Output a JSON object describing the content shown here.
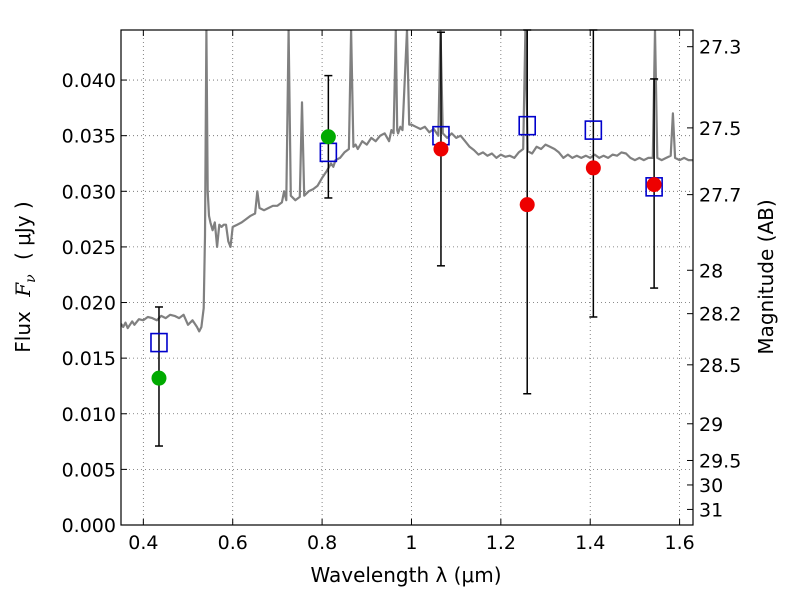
{
  "chart_data": {
    "type": "scatter",
    "xlabel": "Wavelength  λ (μm)",
    "ylabel_text": "Flux",
    "ylabel_math": "F",
    "ylabel_sub": "ν",
    "ylabel_unit": "( μJy )",
    "y2label": "Magnitude (AB)",
    "xlim": [
      0.35,
      1.63
    ],
    "ylim": [
      0.0,
      0.0445
    ],
    "grid": true,
    "x_ticks": [
      {
        "value": 0.4,
        "label": "0.4"
      },
      {
        "value": 0.6,
        "label": "0.6"
      },
      {
        "value": 0.8,
        "label": "0.8"
      },
      {
        "value": 1.0,
        "label": "1"
      },
      {
        "value": 1.2,
        "label": "1.2"
      },
      {
        "value": 1.4,
        "label": "1.4"
      },
      {
        "value": 1.6,
        "label": "1.6"
      }
    ],
    "y_ticks": [
      {
        "value": 0.0,
        "label": "0.000"
      },
      {
        "value": 0.005,
        "label": "0.005"
      },
      {
        "value": 0.01,
        "label": "0.010"
      },
      {
        "value": 0.015,
        "label": "0.015"
      },
      {
        "value": 0.02,
        "label": "0.020"
      },
      {
        "value": 0.025,
        "label": "0.025"
      },
      {
        "value": 0.03,
        "label": "0.030"
      },
      {
        "value": 0.035,
        "label": "0.035"
      },
      {
        "value": 0.04,
        "label": "0.040"
      }
    ],
    "mag_ticks": [
      {
        "flux": 0.043,
        "label": "27.3"
      },
      {
        "flux": 0.0357,
        "label": "27.5"
      },
      {
        "flux": 0.0297,
        "label": "27.7"
      },
      {
        "flux": 0.0229,
        "label": "28"
      },
      {
        "flux": 0.019,
        "label": "28.2"
      },
      {
        "flux": 0.0144,
        "label": "28.5"
      },
      {
        "flux": 0.0091,
        "label": "29"
      },
      {
        "flux": 0.0058,
        "label": "29.5"
      },
      {
        "flux": 0.0036,
        "label": "30"
      },
      {
        "flux": 0.0014,
        "label": "31"
      }
    ],
    "model_spectrum": {
      "color": "#808080",
      "points": [
        [
          0.35,
          0.0181
        ],
        [
          0.355,
          0.0178
        ],
        [
          0.36,
          0.0182
        ],
        [
          0.365,
          0.0177
        ],
        [
          0.37,
          0.018
        ],
        [
          0.375,
          0.0183
        ],
        [
          0.38,
          0.018
        ],
        [
          0.39,
          0.0185
        ],
        [
          0.4,
          0.0184
        ],
        [
          0.41,
          0.0187
        ],
        [
          0.42,
          0.0186
        ],
        [
          0.43,
          0.0184
        ],
        [
          0.44,
          0.0188
        ],
        [
          0.45,
          0.0186
        ],
        [
          0.46,
          0.0189
        ],
        [
          0.47,
          0.0188
        ],
        [
          0.48,
          0.0186
        ],
        [
          0.49,
          0.0189
        ],
        [
          0.5,
          0.018
        ],
        [
          0.51,
          0.0184
        ],
        [
          0.52,
          0.0178
        ],
        [
          0.525,
          0.0174
        ],
        [
          0.53,
          0.0178
        ],
        [
          0.535,
          0.0195
        ],
        [
          0.538,
          0.026
        ],
        [
          0.541,
          0.0445
        ],
        [
          0.544,
          0.03
        ],
        [
          0.547,
          0.0278
        ],
        [
          0.55,
          0.0272
        ],
        [
          0.555,
          0.0265
        ],
        [
          0.56,
          0.0272
        ],
        [
          0.565,
          0.025
        ],
        [
          0.568,
          0.0262
        ],
        [
          0.57,
          0.027
        ],
        [
          0.575,
          0.0268
        ],
        [
          0.58,
          0.027
        ],
        [
          0.585,
          0.027
        ],
        [
          0.59,
          0.0255
        ],
        [
          0.595,
          0.025
        ],
        [
          0.6,
          0.0268
        ],
        [
          0.61,
          0.027
        ],
        [
          0.62,
          0.0272
        ],
        [
          0.63,
          0.0275
        ],
        [
          0.64,
          0.0278
        ],
        [
          0.65,
          0.028
        ],
        [
          0.655,
          0.03
        ],
        [
          0.66,
          0.0285
        ],
        [
          0.67,
          0.0283
        ],
        [
          0.68,
          0.0285
        ],
        [
          0.69,
          0.0287
        ],
        [
          0.7,
          0.0287
        ],
        [
          0.71,
          0.029
        ],
        [
          0.715,
          0.03
        ],
        [
          0.72,
          0.0292
        ],
        [
          0.725,
          0.0445
        ],
        [
          0.73,
          0.0296
        ],
        [
          0.74,
          0.0292
        ],
        [
          0.75,
          0.0295
        ],
        [
          0.755,
          0.038
        ],
        [
          0.76,
          0.0296
        ],
        [
          0.77,
          0.03
        ],
        [
          0.78,
          0.0302
        ],
        [
          0.79,
          0.0305
        ],
        [
          0.8,
          0.0312
        ],
        [
          0.81,
          0.0318
        ],
        [
          0.82,
          0.0325
        ],
        [
          0.825,
          0.0322
        ],
        [
          0.83,
          0.0328
        ],
        [
          0.84,
          0.033
        ],
        [
          0.85,
          0.0335
        ],
        [
          0.86,
          0.0338
        ],
        [
          0.865,
          0.0445
        ],
        [
          0.87,
          0.034
        ],
        [
          0.875,
          0.0342
        ],
        [
          0.88,
          0.0338
        ],
        [
          0.89,
          0.0345
        ],
        [
          0.9,
          0.0342
        ],
        [
          0.91,
          0.0348
        ],
        [
          0.92,
          0.0345
        ],
        [
          0.93,
          0.035
        ],
        [
          0.94,
          0.0352
        ],
        [
          0.95,
          0.0345
        ],
        [
          0.955,
          0.0355
        ],
        [
          0.96,
          0.0352
        ],
        [
          0.965,
          0.0445
        ],
        [
          0.968,
          0.0355
        ],
        [
          0.97,
          0.0352
        ],
        [
          0.975,
          0.0358
        ],
        [
          0.98,
          0.0355
        ],
        [
          0.99,
          0.0445
        ],
        [
          0.995,
          0.036
        ],
        [
          1.0,
          0.036
        ],
        [
          1.01,
          0.0358
        ],
        [
          1.02,
          0.0356
        ],
        [
          1.03,
          0.0358
        ],
        [
          1.04,
          0.0353
        ],
        [
          1.05,
          0.0356
        ],
        [
          1.06,
          0.035
        ],
        [
          1.065,
          0.0445
        ],
        [
          1.07,
          0.0352
        ],
        [
          1.08,
          0.0348
        ],
        [
          1.09,
          0.0352
        ],
        [
          1.1,
          0.0348
        ],
        [
          1.11,
          0.035
        ],
        [
          1.12,
          0.0345
        ],
        [
          1.13,
          0.034
        ],
        [
          1.14,
          0.0337
        ],
        [
          1.15,
          0.0333
        ],
        [
          1.16,
          0.0335
        ],
        [
          1.17,
          0.0332
        ],
        [
          1.18,
          0.0334
        ],
        [
          1.19,
          0.033
        ],
        [
          1.2,
          0.0333
        ],
        [
          1.21,
          0.0331
        ],
        [
          1.22,
          0.0332
        ],
        [
          1.23,
          0.033
        ],
        [
          1.24,
          0.0335
        ],
        [
          1.25,
          0.0338
        ],
        [
          1.255,
          0.0445
        ],
        [
          1.26,
          0.0336
        ],
        [
          1.27,
          0.0334
        ],
        [
          1.28,
          0.034
        ],
        [
          1.29,
          0.0338
        ],
        [
          1.3,
          0.0342
        ],
        [
          1.31,
          0.034
        ],
        [
          1.32,
          0.0338
        ],
        [
          1.33,
          0.0335
        ],
        [
          1.34,
          0.033
        ],
        [
          1.35,
          0.0333
        ],
        [
          1.36,
          0.033
        ],
        [
          1.37,
          0.0332
        ],
        [
          1.38,
          0.033
        ],
        [
          1.39,
          0.0332
        ],
        [
          1.4,
          0.033
        ],
        [
          1.41,
          0.0333
        ],
        [
          1.42,
          0.033
        ],
        [
          1.43,
          0.0332
        ],
        [
          1.44,
          0.033
        ],
        [
          1.45,
          0.0333
        ],
        [
          1.46,
          0.0332
        ],
        [
          1.47,
          0.0335
        ],
        [
          1.48,
          0.0334
        ],
        [
          1.49,
          0.033
        ],
        [
          1.5,
          0.0328
        ],
        [
          1.51,
          0.033
        ],
        [
          1.52,
          0.0328
        ],
        [
          1.53,
          0.033
        ],
        [
          1.54,
          0.033
        ],
        [
          1.545,
          0.0445
        ],
        [
          1.55,
          0.033
        ],
        [
          1.56,
          0.0328
        ],
        [
          1.57,
          0.033
        ],
        [
          1.58,
          0.0332
        ],
        [
          1.585,
          0.037
        ],
        [
          1.59,
          0.033
        ],
        [
          1.6,
          0.0328
        ],
        [
          1.61,
          0.033
        ],
        [
          1.62,
          0.0328
        ],
        [
          1.63,
          0.0328
        ]
      ]
    },
    "observed_green": {
      "color": "#00aa00",
      "points": [
        {
          "x": 0.435,
          "y": 0.0132,
          "err_low": 0.0071,
          "err_high": 0.0196
        },
        {
          "x": 0.814,
          "y": 0.0349,
          "err_low": 0.0294,
          "err_high": 0.0404
        }
      ]
    },
    "observed_red": {
      "color": "#ee0000",
      "points": [
        {
          "x": 1.066,
          "y": 0.0338,
          "err_low": 0.0233,
          "err_high": 0.0443
        },
        {
          "x": 1.259,
          "y": 0.0288,
          "err_low": 0.0118,
          "err_high": 0.0445
        },
        {
          "x": 1.407,
          "y": 0.0321,
          "err_low": 0.0187,
          "err_high": 0.0445
        },
        {
          "x": 1.543,
          "y": 0.0306,
          "err_low": 0.0213,
          "err_high": 0.0401
        }
      ]
    },
    "model_bands": {
      "color": "#0000cc",
      "points": [
        {
          "x": 0.435,
          "y": 0.0164
        },
        {
          "x": 0.814,
          "y": 0.0335
        },
        {
          "x": 1.066,
          "y": 0.035
        },
        {
          "x": 1.259,
          "y": 0.0359
        },
        {
          "x": 1.407,
          "y": 0.0355
        },
        {
          "x": 1.543,
          "y": 0.0304
        }
      ]
    }
  }
}
